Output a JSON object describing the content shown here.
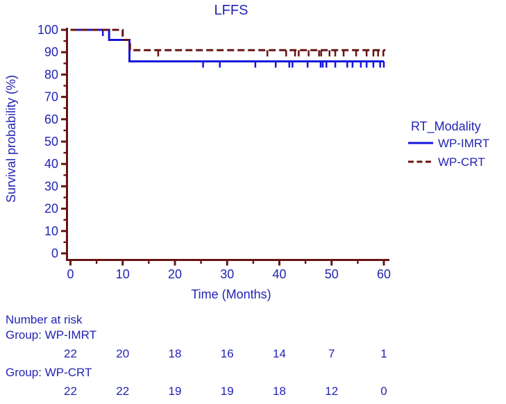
{
  "title": "LFFS",
  "colors": {
    "curve_blue": "#1414dd",
    "curve_maroon": "#671313",
    "axis_maroon": "#671313",
    "label_blue": "#2323b4",
    "background": "#ffffff"
  },
  "chart_data": {
    "type": "line",
    "subtype": "kaplan-meier-step",
    "title": "LFFS",
    "xlabel": "Time (Months)",
    "ylabel": "Survival probability (%)",
    "xlim": [
      0,
      60
    ],
    "ylim": [
      0,
      100
    ],
    "xticks": [
      0,
      10,
      20,
      30,
      40,
      50,
      60
    ],
    "x_minor_ticks": [
      5,
      15,
      25,
      35,
      45,
      55
    ],
    "yticks": [
      0,
      10,
      20,
      30,
      40,
      50,
      60,
      70,
      80,
      90,
      100
    ],
    "y_minor_ticks": [
      5,
      15,
      25,
      35,
      45,
      55,
      65,
      75,
      85,
      95
    ],
    "grid": "off",
    "legend": {
      "title": "RT_Modality",
      "position": "right"
    },
    "series": [
      {
        "name": "WP-IMRT",
        "style": "solid",
        "color": "#1414dd",
        "steps": [
          [
            0,
            100
          ],
          [
            7.4,
            100
          ],
          [
            7.4,
            95.5
          ],
          [
            11.3,
            95.5
          ],
          [
            11.3,
            85.9
          ],
          [
            60,
            85.9
          ]
        ],
        "censor_marks": [
          [
            6.2,
            100
          ],
          [
            25.4,
            85.9
          ],
          [
            28.6,
            85.9
          ],
          [
            35.4,
            85.9
          ],
          [
            39.3,
            85.9
          ],
          [
            41.9,
            85.9
          ],
          [
            42.5,
            85.9
          ],
          [
            45.4,
            85.9
          ],
          [
            47.9,
            85.9
          ],
          [
            48.3,
            85.9
          ],
          [
            49.0,
            85.9
          ],
          [
            50.7,
            85.9
          ],
          [
            53.0,
            85.9
          ],
          [
            54.0,
            85.9
          ],
          [
            55.6,
            85.9
          ],
          [
            56.7,
            85.9
          ],
          [
            58.0,
            85.9
          ],
          [
            59.3,
            85.9
          ],
          [
            60.0,
            85.9
          ]
        ]
      },
      {
        "name": "WP-CRT",
        "style": "dashed",
        "color": "#671313",
        "steps": [
          [
            0,
            100
          ],
          [
            10.0,
            100
          ],
          [
            10.0,
            95.5
          ],
          [
            11.4,
            95.5
          ],
          [
            11.4,
            90.9
          ],
          [
            60.3,
            90.9
          ]
        ],
        "censor_marks": [
          [
            16.8,
            90.9
          ],
          [
            37.7,
            90.9
          ],
          [
            41.3,
            90.9
          ],
          [
            43.0,
            90.9
          ],
          [
            43.7,
            90.9
          ],
          [
            45.6,
            90.9
          ],
          [
            47.6,
            90.9
          ],
          [
            48.0,
            90.9
          ],
          [
            49.6,
            90.9
          ],
          [
            50.7,
            90.9
          ],
          [
            52.3,
            90.9
          ],
          [
            54.7,
            90.9
          ],
          [
            56.7,
            90.9
          ],
          [
            58.0,
            90.9
          ],
          [
            58.9,
            90.9
          ],
          [
            59.9,
            90.9
          ]
        ]
      }
    ]
  },
  "risk_table": {
    "heading": "Number at risk",
    "time_points": [
      0,
      10,
      20,
      30,
      40,
      50,
      60
    ],
    "groups": [
      {
        "label": "Group: WP-IMRT",
        "values": [
          "22",
          "20",
          "18",
          "16",
          "14",
          "7",
          "1"
        ]
      },
      {
        "label": "Group: WP-CRT",
        "values": [
          "22",
          "22",
          "19",
          "19",
          "18",
          "12",
          "0"
        ]
      }
    ]
  }
}
